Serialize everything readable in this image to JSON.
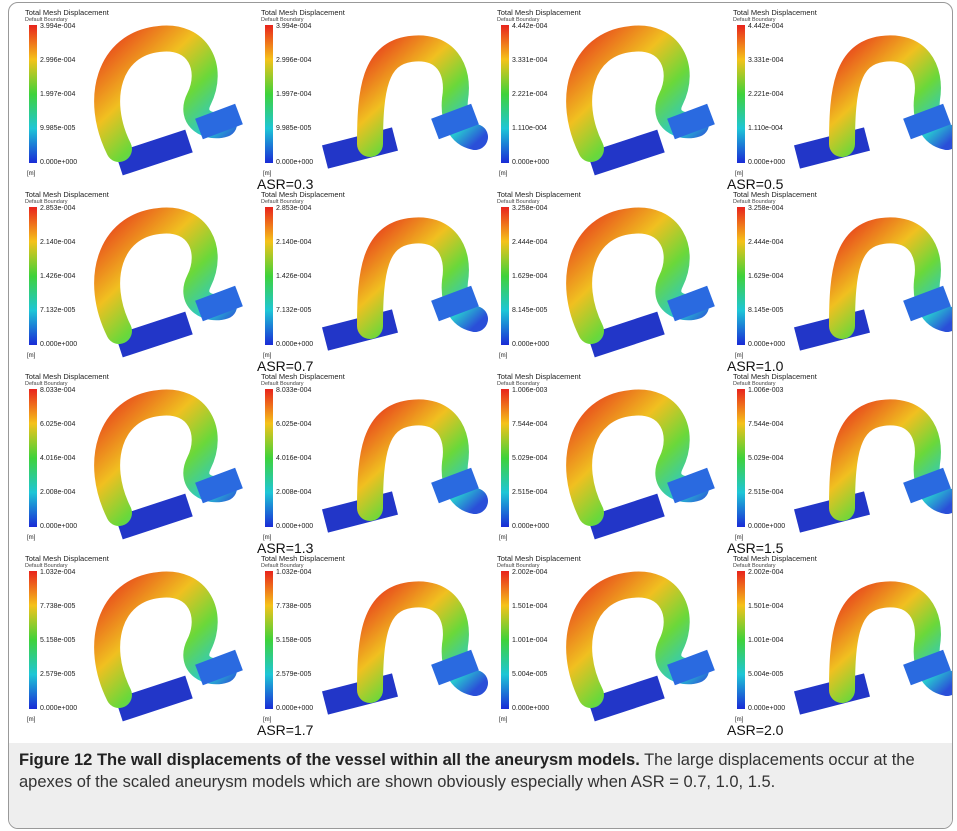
{
  "figure": {
    "panel_title": "Total Mesh Displacement",
    "panel_subtitle": "Default Boundary",
    "unit": "[m]",
    "groups": [
      {
        "label": "ASR=0.3",
        "ticks": [
          "3.994e-004",
          "2.996e-004",
          "1.997e-004",
          "9.985e-005",
          "0.000e+000"
        ]
      },
      {
        "label": "ASR=0.5",
        "ticks": [
          "4.442e-004",
          "3.331e-004",
          "2.221e-004",
          "1.110e-004",
          "0.000e+000"
        ]
      },
      {
        "label": "ASR=0.7",
        "ticks": [
          "2.853e-004",
          "2.140e-004",
          "1.426e-004",
          "7.132e-005",
          "0.000e+000"
        ]
      },
      {
        "label": "ASR=1.0",
        "ticks": [
          "3.258e-004",
          "2.444e-004",
          "1.629e-004",
          "8.145e-005",
          "0.000e+000"
        ]
      },
      {
        "label": "ASR=1.3",
        "ticks": [
          "8.033e-004",
          "6.025e-004",
          "4.016e-004",
          "2.008e-004",
          "0.000e+000"
        ]
      },
      {
        "label": "ASR=1.5",
        "ticks": [
          "1.006e-003",
          "7.544e-004",
          "5.029e-004",
          "2.515e-004",
          "0.000e+000"
        ]
      },
      {
        "label": "ASR=1.7",
        "ticks": [
          "1.032e-004",
          "7.738e-005",
          "5.158e-005",
          "2.579e-005",
          "0.000e+000"
        ]
      },
      {
        "label": "ASR=2.0",
        "ticks": [
          "2.002e-004",
          "1.501e-004",
          "1.001e-004",
          "5.004e-005",
          "0.000e+000"
        ]
      }
    ],
    "caption_title": "Figure 12 The wall displacements of the vessel within all the aneurysm models.",
    "caption_text": "The large displacements occur at the apexes of the scaled aneurysm models which are shown obviously especially when ASR = 0.7, 1.0, 1.5."
  }
}
